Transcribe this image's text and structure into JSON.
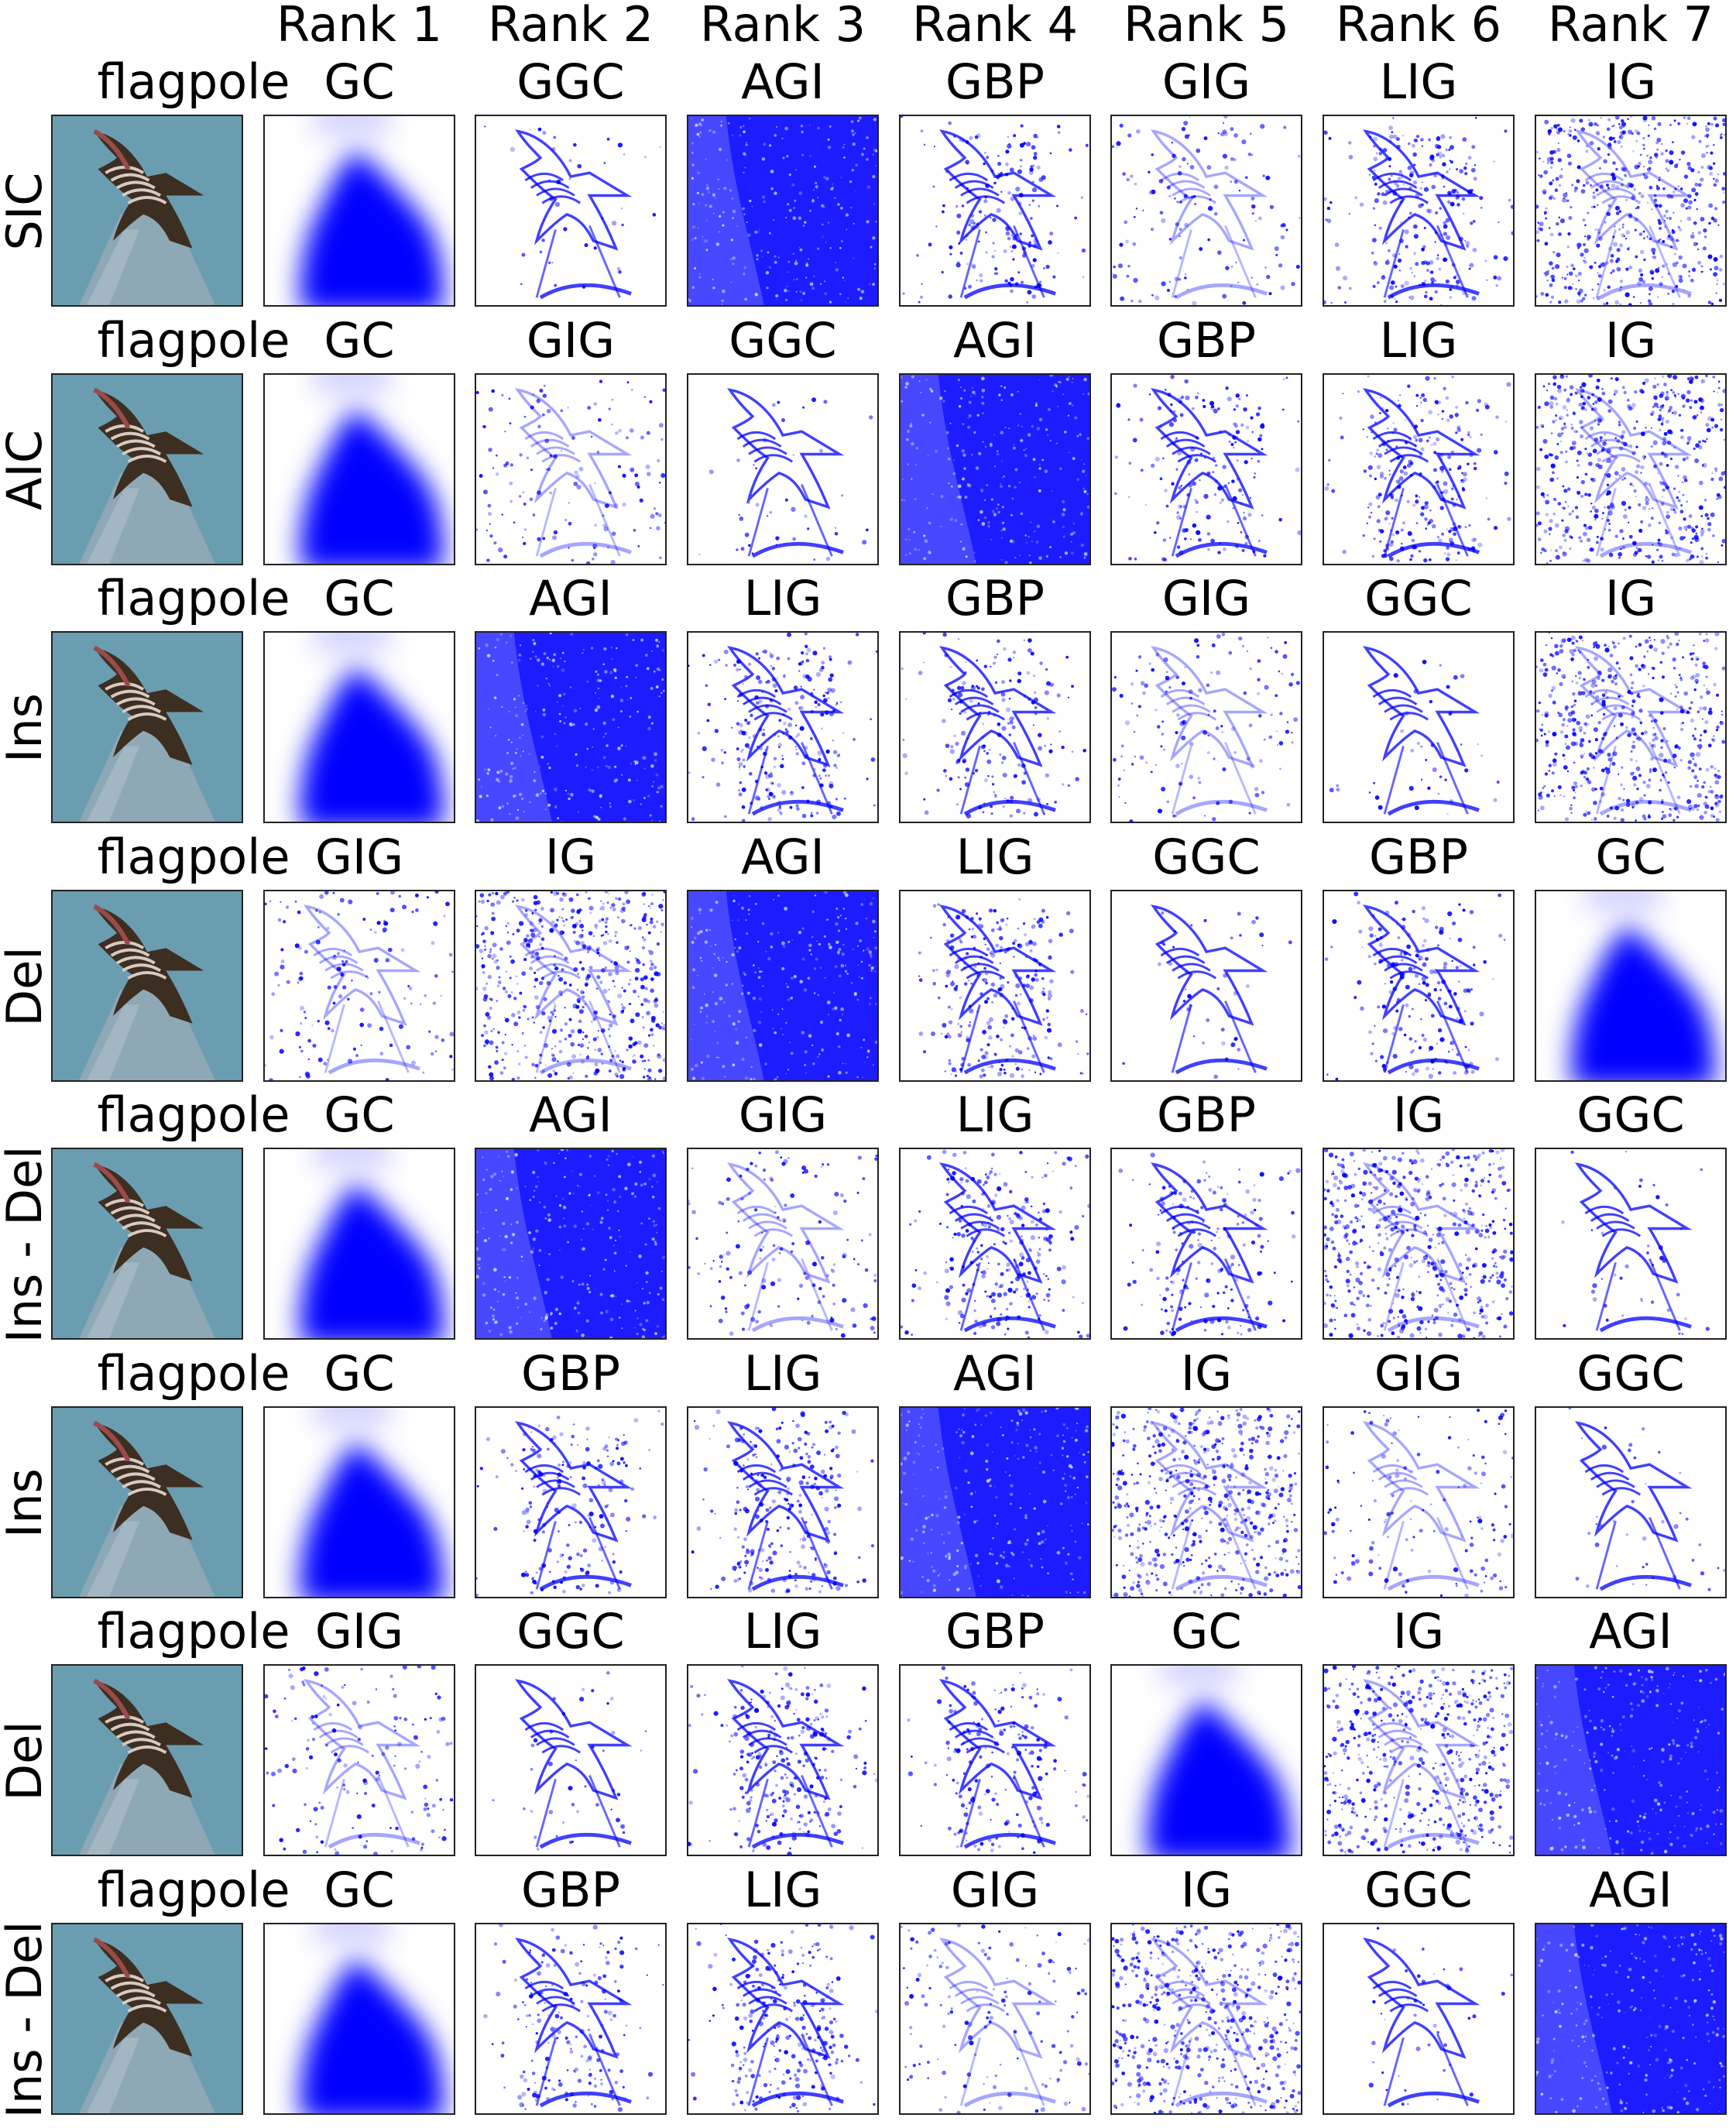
{
  "rank_headers": [
    "Rank 1",
    "Rank 2",
    "Rank 3",
    "Rank 4",
    "Rank 5",
    "Rank 6",
    "Rank 7"
  ],
  "image_label": "flagpole",
  "colors": {
    "saliency": "#0000ff",
    "sky": "#6a9db0",
    "pole": "#8fa8b6",
    "frame": "#222222"
  },
  "rows": [
    {
      "metric": "SIC",
      "methods": [
        "GC",
        "GGC",
        "AGI",
        "GBP",
        "GIG",
        "LIG",
        "IG"
      ]
    },
    {
      "metric": "AIC",
      "methods": [
        "GC",
        "GIG",
        "GGC",
        "AGI",
        "GBP",
        "LIG",
        "IG"
      ]
    },
    {
      "metric": "Ins",
      "methods": [
        "GC",
        "AGI",
        "LIG",
        "GBP",
        "GIG",
        "GGC",
        "IG"
      ]
    },
    {
      "metric": "Del",
      "methods": [
        "GIG",
        "IG",
        "AGI",
        "LIG",
        "GGC",
        "GBP",
        "GC"
      ]
    },
    {
      "metric": "Ins - Del",
      "methods": [
        "GC",
        "AGI",
        "GIG",
        "LIG",
        "GBP",
        "IG",
        "GGC"
      ]
    },
    {
      "metric": "Ins",
      "methods": [
        "GC",
        "GBP",
        "LIG",
        "AGI",
        "IG",
        "GIG",
        "GGC"
      ]
    },
    {
      "metric": "Del",
      "methods": [
        "GIG",
        "GGC",
        "LIG",
        "GBP",
        "GC",
        "IG",
        "AGI"
      ]
    },
    {
      "metric": "Ins - Del",
      "methods": [
        "GC",
        "GBP",
        "LIG",
        "GIG",
        "IG",
        "GGC",
        "AGI"
      ]
    }
  ]
}
